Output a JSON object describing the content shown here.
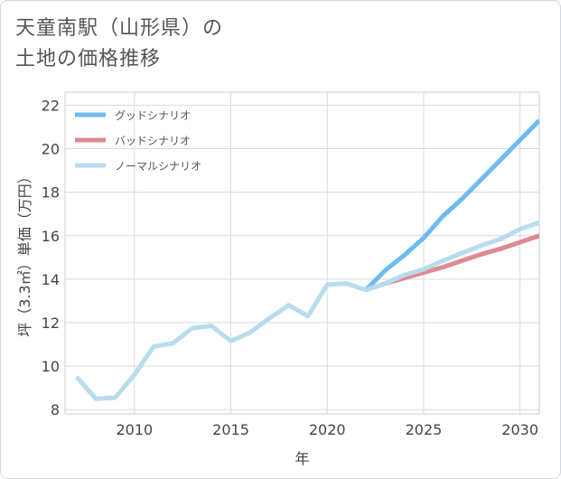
{
  "title": {
    "line1": "天童南駅（山形県）の",
    "line2": "土地の価格推移"
  },
  "chart_data": {
    "type": "line",
    "title": "天童南駅（山形県）の土地の価格推移",
    "xlabel": "年",
    "ylabel": "坪（3.3㎡）単価（万円）",
    "xlim": [
      2006.4,
      2031
    ],
    "ylim": [
      7.8,
      22.6
    ],
    "x_ticks": [
      2010,
      2015,
      2020,
      2025,
      2030
    ],
    "y_ticks": [
      8,
      10,
      12,
      14,
      16,
      18,
      20,
      22
    ],
    "grid": true,
    "legend_position": "top-left",
    "series": [
      {
        "name": "グッドシナリオ",
        "color": "#6cbcf0",
        "x": [
          2022,
          2023,
          2024,
          2025,
          2026,
          2027,
          2028,
          2029,
          2030,
          2031
        ],
        "values": [
          13.5,
          14.4,
          15.1,
          15.9,
          16.9,
          17.7,
          18.6,
          19.5,
          20.4,
          21.3
        ]
      },
      {
        "name": "バッドシナリオ",
        "color": "#dd8a90",
        "x": [
          2022,
          2023,
          2024,
          2025,
          2026,
          2027,
          2028,
          2029,
          2030,
          2031
        ],
        "values": [
          13.5,
          13.8,
          14.05,
          14.3,
          14.55,
          14.85,
          15.15,
          15.4,
          15.7,
          16.0
        ]
      },
      {
        "name": "ノーマルシナリオ",
        "color": "#b8dcee",
        "x": [
          2007,
          2008,
          2009,
          2010,
          2011,
          2012,
          2013,
          2014,
          2015,
          2016,
          2017,
          2018,
          2019,
          2020,
          2021,
          2022,
          2023,
          2024,
          2025,
          2026,
          2027,
          2028,
          2029,
          2030,
          2031
        ],
        "values": [
          9.5,
          8.5,
          8.55,
          9.6,
          10.9,
          11.05,
          11.75,
          11.85,
          11.15,
          11.55,
          12.2,
          12.8,
          12.3,
          13.75,
          13.8,
          13.5,
          13.8,
          14.2,
          14.45,
          14.85,
          15.2,
          15.55,
          15.85,
          16.3,
          16.6
        ]
      }
    ]
  }
}
